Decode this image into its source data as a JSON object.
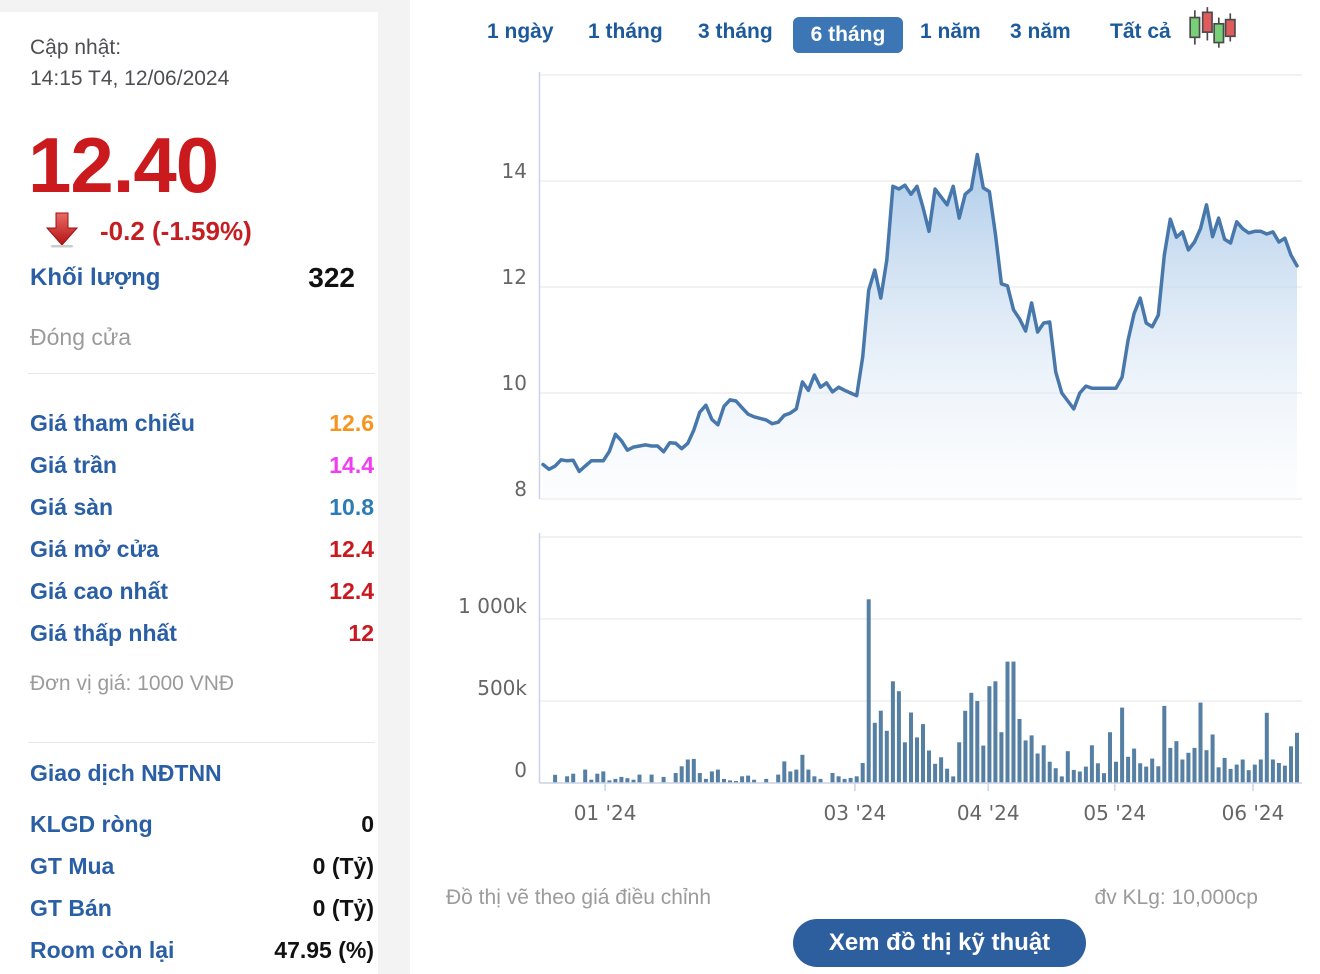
{
  "sidebar": {
    "updated_label": "Cập nhật:",
    "updated_time": "14:15 T4, 12/06/2024",
    "price": "12.40",
    "change": "-0.2 (-1.59%)",
    "volume_label": "Khối lượng",
    "volume_value": "322",
    "close_label": "Đóng cửa",
    "price_rows": [
      {
        "label": "Giá tham chiếu",
        "value": "12.6",
        "color": "#f7941d"
      },
      {
        "label": "Giá trần",
        "value": "14.4",
        "color": "#f23cf2"
      },
      {
        "label": "Giá sàn",
        "value": "10.8",
        "color": "#2d7cb5"
      },
      {
        "label": "Giá mở cửa",
        "value": "12.4",
        "color": "#c9181e"
      },
      {
        "label": "Giá cao nhất",
        "value": "12.4",
        "color": "#c9181e"
      },
      {
        "label": "Giá thấp nhất",
        "value": "12",
        "color": "#c9181e"
      }
    ],
    "unit_note": "Đơn vị giá: 1000 VNĐ",
    "foreign_title": "Giao dịch NĐTNN",
    "foreign_rows": [
      {
        "label": "KLGD ròng",
        "value": "0"
      },
      {
        "label": "GT Mua",
        "value": "0 (Tỷ)"
      },
      {
        "label": "GT Bán",
        "value": "0 (Tỷ)"
      },
      {
        "label": "Room còn lại",
        "value": "47.95 (%)"
      }
    ]
  },
  "tabs": {
    "items": [
      "1 ngày",
      "1 tháng",
      "3 tháng",
      "6 tháng",
      "1 năm",
      "3 năm",
      "Tất cả"
    ],
    "active_index": 3,
    "candlestick_icon": "candlestick-chart-icon"
  },
  "colors": {
    "accent_tab_blue": "#3c76b5",
    "label_blue": "#2a5fa5",
    "down_red": "#c41e22",
    "price_red": "#cb1a1d",
    "line_blue": "#4878ab",
    "bar_blue": "#557fa3",
    "button_blue": "#2d5f9e",
    "ref_orange": "#f7941d",
    "ceiling_magenta": "#f23cf2",
    "floor_blue": "#2d7cb5"
  },
  "chart_data": {
    "type": [
      "area",
      "bar"
    ],
    "title": "",
    "xlabel": "",
    "ylabel": "price (1000 VND)",
    "grid": true,
    "price_panel": {
      "ylim": [
        8,
        16
      ],
      "yticks": [
        {
          "v": 8,
          "label": "8"
        },
        {
          "v": 10,
          "label": "10"
        },
        {
          "v": 12,
          "label": "12"
        },
        {
          "v": 14,
          "label": "14"
        }
      ],
      "grid_values": [
        8,
        10,
        12,
        14,
        16
      ],
      "values": [
        8.65,
        8.56,
        8.62,
        8.74,
        8.72,
        8.73,
        8.52,
        8.62,
        8.72,
        8.72,
        8.72,
        8.9,
        9.22,
        9.1,
        8.92,
        8.98,
        9.0,
        9.02,
        9.0,
        9.0,
        8.89,
        9.06,
        9.05,
        8.95,
        9.05,
        9.3,
        9.64,
        9.77,
        9.5,
        9.4,
        9.75,
        9.87,
        9.85,
        9.72,
        9.6,
        9.55,
        9.52,
        9.49,
        9.42,
        9.45,
        9.58,
        9.62,
        9.7,
        10.21,
        10.05,
        10.34,
        10.11,
        10.19,
        10.02,
        10.11,
        10.05,
        10.0,
        9.95,
        10.68,
        11.94,
        12.32,
        11.79,
        12.51,
        13.9,
        13.85,
        13.92,
        13.75,
        13.9,
        13.5,
        13.05,
        13.85,
        13.7,
        13.55,
        13.9,
        13.3,
        13.75,
        13.85,
        14.5,
        13.87,
        13.8,
        13.0,
        12.06,
        12.02,
        11.57,
        11.4,
        11.17,
        11.7,
        11.15,
        11.32,
        11.34,
        10.4,
        10.0,
        9.85,
        9.7,
        10.0,
        10.13,
        10.09,
        10.09,
        10.09,
        10.09,
        10.09,
        10.3,
        11.0,
        11.5,
        11.79,
        11.32,
        11.25,
        11.47,
        12.6,
        13.28,
        12.94,
        13.04,
        12.7,
        12.85,
        13.1,
        13.55,
        12.95,
        13.3,
        12.9,
        12.83,
        13.23,
        13.1,
        13.02,
        13.05,
        13.05,
        13.0,
        13.04,
        12.85,
        12.92,
        12.6,
        12.4
      ]
    },
    "volume_panel": {
      "ylim_k": [
        0,
        1525
      ],
      "yticks": [
        {
          "v": 0,
          "label": "0"
        },
        {
          "v": 500,
          "label": "500k"
        },
        {
          "v": 1000,
          "label": "1 000k"
        }
      ],
      "grid_values": [
        500,
        1000,
        1500
      ],
      "values_k": [
        0,
        0,
        50,
        0,
        41,
        57,
        0,
        82,
        20,
        57,
        71,
        16,
        25,
        37,
        29,
        20,
        51,
        0,
        51,
        0,
        37,
        0,
        61,
        102,
        143,
        147,
        61,
        25,
        71,
        82,
        25,
        16,
        12,
        41,
        45,
        20,
        0,
        25,
        0,
        51,
        132,
        71,
        82,
        172,
        82,
        41,
        25,
        0,
        61,
        41,
        25,
        31,
        41,
        122,
        1120,
        367,
        441,
        318,
        620,
        560,
        248,
        430,
        278,
        359,
        198,
        117,
        157,
        87,
        40,
        248,
        440,
        550,
        500,
        228,
        590,
        620,
        310,
        740,
        740,
        390,
        260,
        290,
        180,
        230,
        130,
        90,
        40,
        194,
        80,
        70,
        100,
        230,
        120,
        60,
        310,
        130,
        460,
        160,
        210,
        120,
        100,
        149,
        102,
        470,
        214,
        255,
        143,
        184,
        214,
        490,
        200,
        296,
        96,
        153,
        86,
        112,
        143,
        78,
        112,
        143,
        428,
        143,
        122,
        106,
        224,
        306
      ]
    },
    "x_months": [
      {
        "label": "01 '24",
        "i": 10.3
      },
      {
        "label": "03 '24",
        "i": 51.7
      },
      {
        "label": "04 '24",
        "i": 73.8
      },
      {
        "label": "05 '24",
        "i": 94.8
      },
      {
        "label": "06 '24",
        "i": 117.7
      }
    ]
  },
  "footer": {
    "note_left": "Đồ thị vẽ theo giá điều chỉnh",
    "note_right": "đv KLg: 10,000cp",
    "button": "Xem đồ thị kỹ thuật"
  }
}
